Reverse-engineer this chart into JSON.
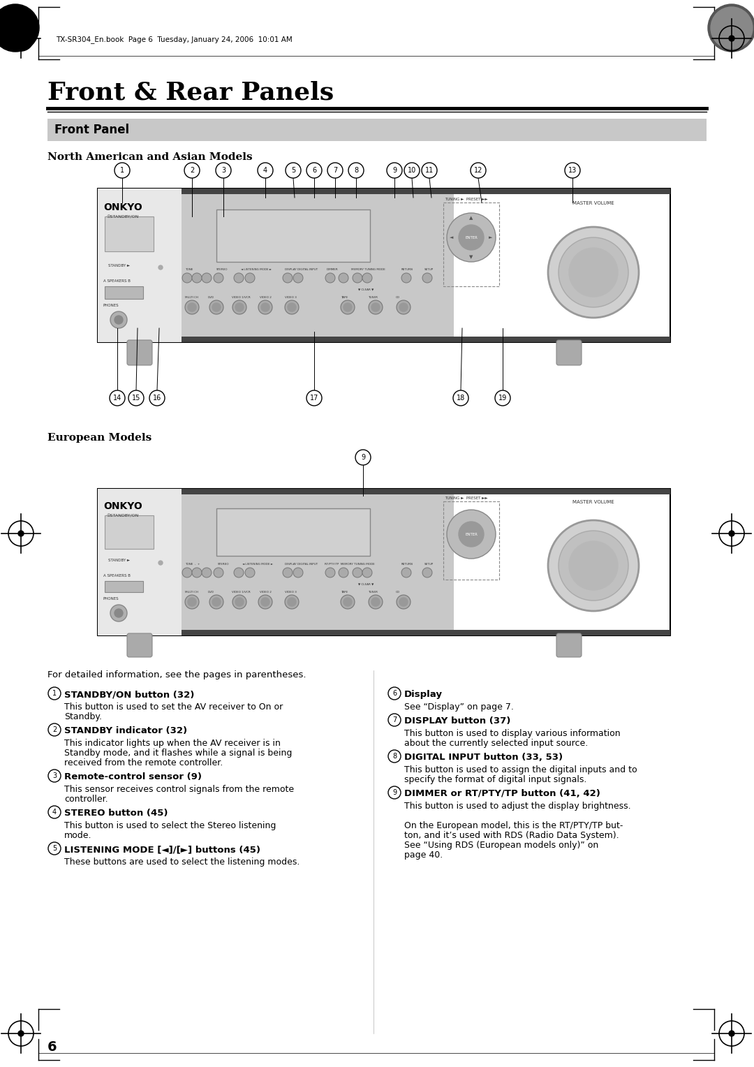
{
  "page_bg": "#ffffff",
  "header_text": "TX-SR304_En.book  Page 6  Tuesday, January 24, 2006  10:01 AM",
  "title": "Front & Rear Panels",
  "section_header": "Front Panel",
  "section_header_bg": "#cccccc",
  "subsection1": "North American and Asian Models",
  "subsection2": "European Models",
  "footer_note": "For detailed information, see the pages in parentheses.",
  "page_number": "6",
  "items_left": [
    {
      "num": "1",
      "bold": "STANDBY/ON button (32)",
      "text": "This button is used to set the AV receiver to On or\nStandby."
    },
    {
      "num": "2",
      "bold": "STANDBY indicator (32)",
      "text": "This indicator lights up when the AV receiver is in\nStandby mode, and it flashes while a signal is being\nreceived from the remote controller."
    },
    {
      "num": "3",
      "bold": "Remote-control sensor (9)",
      "text": "This sensor receives control signals from the remote\ncontroller."
    },
    {
      "num": "4",
      "bold": "STEREO button (45)",
      "text": "This button is used to select the Stereo listening\nmode."
    },
    {
      "num": "5",
      "bold": "LISTENING MODE [◄]/[►] buttons (45)",
      "text": "These buttons are used to select the listening modes."
    }
  ],
  "items_right": [
    {
      "num": "6",
      "bold": "Display",
      "text": "See “Display” on page 7."
    },
    {
      "num": "7",
      "bold": "DISPLAY button (37)",
      "text": "This button is used to display various information\nabout the currently selected input source."
    },
    {
      "num": "8",
      "bold": "DIGITAL INPUT button (33, 53)",
      "text": "This button is used to assign the digital inputs and to\nspecify the format of digital input signals."
    },
    {
      "num": "9",
      "bold": "DIMMER or RT/PTY/TP button (41, 42)",
      "text": "This button is used to adjust the display brightness.\n\nOn the European model, this is the RT/PTY/TP but-\nton, and it’s used with RDS (Radio Data System).\nSee “Using RDS (European models only)” on\npage 40."
    }
  ]
}
